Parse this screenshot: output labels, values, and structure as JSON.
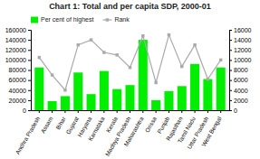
{
  "chart_data": {
    "type": "bar",
    "title": "Chart 1: Total and per capita SDP, 2000-01",
    "categories": [
      "Andhra Pradesh",
      "Assam",
      "Bihar",
      "Gujarat",
      "Haryana",
      "Karnataka",
      "Kerala",
      "Madhya Pradesh",
      "Maharashtra",
      "Orissa",
      "Punjab",
      "Rajasthan",
      "Tamil Nadu",
      "Uttar Pradesh",
      "West Bengal"
    ],
    "series": [
      {
        "name": "Per cent of highest",
        "type": "bar",
        "color": "#00ee00",
        "values": [
          85000,
          18000,
          28000,
          75000,
          32000,
          78000,
          42000,
          50000,
          140000,
          20000,
          38000,
          48000,
          92000,
          62000,
          85000
        ]
      },
      {
        "name": "Rank",
        "type": "line",
        "color": "#aaaaaa",
        "marker": "square",
        "axis": "y2",
        "values": [
          10500,
          7000,
          4000,
          13000,
          14000,
          11500,
          11000,
          8500,
          14800,
          5500,
          15000,
          8700,
          13000,
          6200,
          10000
        ]
      }
    ],
    "ylim": [
      0,
      160000
    ],
    "yticks": [
      0,
      20000,
      40000,
      60000,
      80000,
      100000,
      120000,
      140000,
      160000
    ],
    "y2lim": [
      0,
      16000
    ],
    "y2ticks": [
      0,
      2000,
      4000,
      6000,
      8000,
      10000,
      12000,
      14000,
      16000
    ],
    "legend": "upper left",
    "grid": false
  }
}
